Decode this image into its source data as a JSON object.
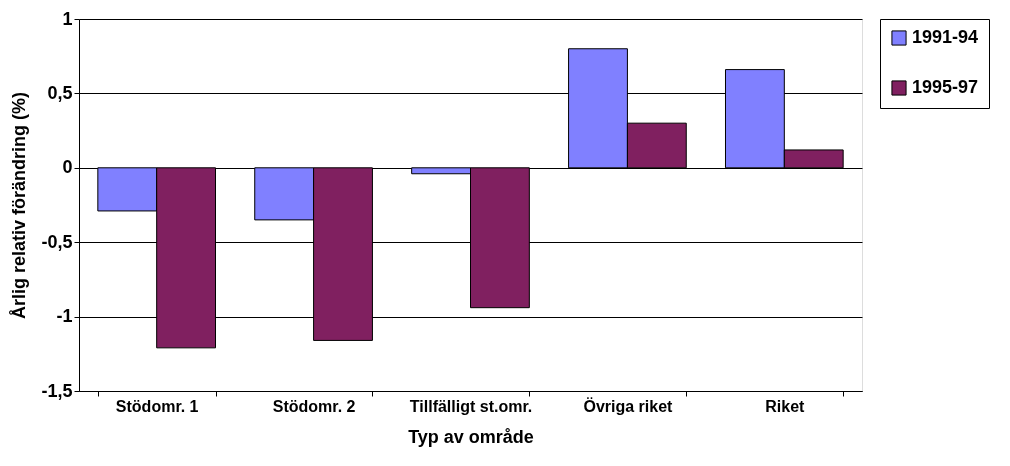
{
  "chart_data": {
    "type": "bar",
    "xlabel": "Typ av område",
    "ylabel": "Årlig relativ förändring (%)",
    "categories": [
      "Stödomr. 1",
      "Stödomr. 2",
      "Tillfälligt st.omr.",
      "Övriga riket",
      "Riket"
    ],
    "series": [
      {
        "name": "1991-94",
        "color": "#8080ff",
        "values": [
          -0.29,
          -0.35,
          -0.04,
          0.8,
          0.66
        ]
      },
      {
        "name": "1995-97",
        "color": "#802060",
        "values": [
          -1.21,
          -1.16,
          -0.94,
          0.3,
          0.12
        ]
      }
    ],
    "ylim": [
      -1.5,
      1
    ],
    "yticks": [
      {
        "value": -1.5,
        "label": "-1,5"
      },
      {
        "value": -1,
        "label": "-1"
      },
      {
        "value": -0.5,
        "label": "-0,5"
      },
      {
        "value": 0,
        "label": "0"
      },
      {
        "value": 0.5,
        "label": "0,5"
      },
      {
        "value": 1,
        "label": "1"
      }
    ],
    "grid": "y",
    "legend": "right"
  }
}
